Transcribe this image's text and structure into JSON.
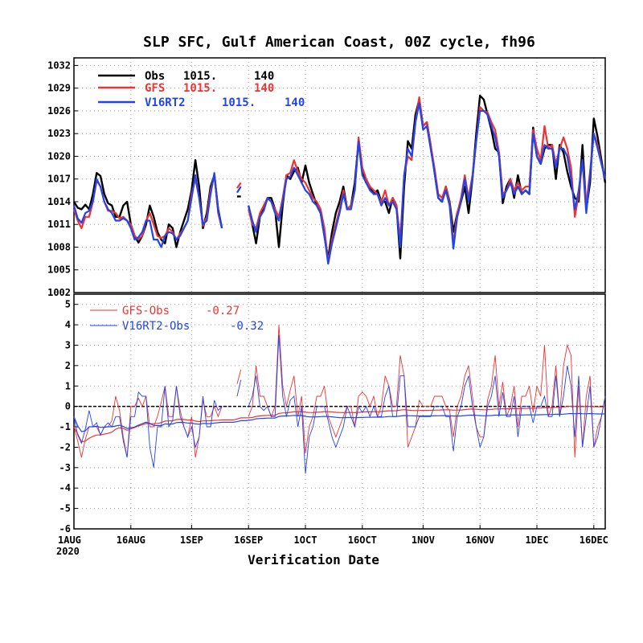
{
  "chart_data": {
    "type": "line",
    "title": "SLP SFC, Gulf American Coast, 00Z cycle, fh96",
    "xlabel": "Verification Date",
    "grid": true,
    "x_ticks": [
      "1AUG",
      "16AUG",
      "1SEP",
      "16SEP",
      "1OCT",
      "16OCT",
      "1NOV",
      "16NOV",
      "1DEC",
      "16DEC"
    ],
    "x_tick_day": [
      0,
      15,
      31,
      46,
      61,
      76,
      92,
      107,
      122,
      137
    ],
    "x_year": "2020",
    "n_days": 141,
    "top_panel": {
      "ylim": [
        1002,
        1033
      ],
      "yticks": [
        1002,
        1005,
        1008,
        1011,
        1014,
        1017,
        1020,
        1023,
        1026,
        1029,
        1032
      ],
      "legend": [
        {
          "name": "Obs",
          "mean": "1015.",
          "count": "140",
          "color": "#000000"
        },
        {
          "name": "GFS",
          "mean": "1015.",
          "count": "140",
          "color": "#ee3333"
        },
        {
          "name": "V16RT2",
          "mean": "1015.",
          "count": "140",
          "color": "#2244ee"
        }
      ],
      "series": [
        {
          "name": "Obs",
          "color": "#000000",
          "values": [
            1014.0,
            1013.2,
            1013.0,
            1013.6,
            1013.0,
            1015.0,
            1017.8,
            1017.4,
            1015.0,
            1013.8,
            1013.5,
            1012.0,
            1012.0,
            1013.5,
            1014.0,
            1011.0,
            1009.5,
            1008.6,
            1009.5,
            1011.0,
            1013.5,
            1012.0,
            1010.0,
            1009.0,
            1008.5,
            1011.0,
            1010.5,
            1008.0,
            1010.0,
            1011.5,
            1013.0,
            1015.5,
            1019.5,
            1016.0,
            1010.5,
            1012.5,
            1016.0,
            1017.5,
            1013.0,
            1010.5,
            null,
            null,
            null,
            1014.7,
            1014.7,
            null,
            1013.5,
            1011.0,
            1008.5,
            1012.0,
            1013.0,
            1014.5,
            1014.5,
            1013.0,
            1008.0,
            1013.5,
            1017.5,
            1017.0,
            1018.0,
            1018.5,
            1016.5,
            1018.8,
            1016.5,
            1015.0,
            1013.5,
            1012.5,
            1009.5,
            1006.5,
            1010.0,
            1012.5,
            1014.0,
            1016.0,
            1013.0,
            1013.5,
            1016.5,
            1022.0,
            1017.8,
            1016.5,
            1016.0,
            1015.0,
            1015.5,
            1014.0,
            1014.0,
            1012.5,
            1014.5,
            1013.5,
            1006.5,
            1016.0,
            1022.0,
            1021.0,
            1025.5,
            1027.5,
            1024.0,
            1024.5,
            1021.5,
            1018.0,
            1014.5,
            1014.0,
            1016.0,
            1014.0,
            1010.0,
            1012.5,
            1014.0,
            1016.0,
            1012.5,
            1017.0,
            1023.0,
            1028.0,
            1027.5,
            1025.5,
            1023.5,
            1021.0,
            1020.5,
            1013.8,
            1016.0,
            1017.0,
            1014.5,
            1017.5,
            1015.0,
            1015.5,
            1015.0,
            1023.8,
            1020.0,
            1019.0,
            1021.0,
            1021.5,
            1021.5,
            1017.0,
            1021.5,
            1020.5,
            1018.0,
            1016.0,
            1014.5,
            1014.0,
            1021.5,
            1013.0,
            1016.5,
            1025.0,
            1022.5,
            1019.5,
            1016.5
          ]
        },
        {
          "name": "GFS",
          "color": "#ee3333",
          "values": [
            1013.0,
            1011.5,
            1010.5,
            1012.0,
            1012.0,
            1014.0,
            1016.8,
            1016.0,
            1014.0,
            1012.8,
            1012.8,
            1012.5,
            1011.8,
            1012.0,
            1011.5,
            1011.0,
            1009.5,
            1009.0,
            1009.5,
            1011.5,
            1012.5,
            1011.0,
            1009.5,
            1009.2,
            1009.5,
            1010.5,
            1010.0,
            1009.0,
            1009.8,
            1010.5,
            1011.5,
            1015.0,
            1017.0,
            1014.5,
            1010.8,
            1012.0,
            1015.5,
            1017.5,
            1012.5,
            1010.5,
            null,
            null,
            null,
            1015.8,
            1016.5,
            null,
            1013.0,
            1011.0,
            1010.5,
            1012.5,
            1013.5,
            1014.5,
            1014.0,
            1013.0,
            1012.0,
            1014.5,
            1017.5,
            1017.8,
            1019.5,
            1018.0,
            1017.0,
            1016.5,
            1015.5,
            1014.5,
            1014.0,
            1013.0,
            1010.5,
            1006.0,
            1009.0,
            1011.0,
            1013.0,
            1015.5,
            1013.0,
            1013.5,
            1015.5,
            1022.5,
            1018.5,
            1017.0,
            1016.0,
            1015.5,
            1015.0,
            1014.0,
            1015.5,
            1013.5,
            1014.5,
            1013.5,
            1009.0,
            1017.5,
            1020.0,
            1019.5,
            1024.5,
            1027.8,
            1024.0,
            1024.5,
            1021.5,
            1018.5,
            1015.0,
            1014.5,
            1016.0,
            1013.8,
            1008.5,
            1012.5,
            1014.5,
            1017.5,
            1014.5,
            1017.5,
            1022.0,
            1026.5,
            1026.0,
            1025.8,
            1024.5,
            1023.5,
            1020.5,
            1015.0,
            1015.5,
            1017.0,
            1015.5,
            1016.5,
            1015.5,
            1016.0,
            1016.0,
            1023.5,
            1021.0,
            1019.5,
            1024.0,
            1021.0,
            1021.5,
            1019.0,
            1021.0,
            1022.5,
            1021.0,
            1018.5,
            1012.0,
            1015.0,
            1019.5,
            1013.5,
            1018.0,
            1023.0,
            1021.5,
            1019.0,
            1017.0
          ]
        },
        {
          "name": "V16RT2",
          "color": "#2244ee",
          "values": [
            1013.5,
            1011.8,
            1011.2,
            1012.5,
            1012.8,
            1014.0,
            1017.0,
            1016.0,
            1014.0,
            1013.0,
            1012.5,
            1011.5,
            1011.5,
            1011.8,
            1011.5,
            1010.5,
            1009.0,
            1009.3,
            1010.0,
            1011.5,
            1011.5,
            1009.0,
            1009.0,
            1008.0,
            1009.5,
            1010.0,
            1009.8,
            1009.0,
            1009.5,
            1010.5,
            1011.5,
            1014.5,
            1017.5,
            1014.5,
            1011.0,
            1011.5,
            1015.0,
            1017.8,
            1012.8,
            1010.5,
            null,
            null,
            null,
            1015.2,
            1016.0,
            null,
            1013.5,
            1011.5,
            1010.0,
            1012.0,
            1012.8,
            1014.5,
            1014.0,
            1012.5,
            1011.5,
            1014.0,
            1017.0,
            1017.3,
            1018.5,
            1017.5,
            1016.5,
            1015.5,
            1015.0,
            1014.0,
            1013.5,
            1012.5,
            1009.5,
            1005.8,
            1008.5,
            1010.5,
            1012.5,
            1015.0,
            1013.0,
            1013.0,
            1015.5,
            1022.0,
            1017.5,
            1016.5,
            1015.5,
            1015.0,
            1015.0,
            1013.5,
            1014.5,
            1013.5,
            1014.0,
            1013.0,
            1008.0,
            1017.5,
            1021.0,
            1020.0,
            1024.5,
            1027.0,
            1023.5,
            1024.0,
            1021.0,
            1018.0,
            1014.5,
            1014.0,
            1015.5,
            1013.5,
            1007.8,
            1012.0,
            1014.0,
            1017.0,
            1014.0,
            1017.0,
            1022.0,
            1026.0,
            1026.0,
            1025.5,
            1024.0,
            1022.5,
            1020.0,
            1014.5,
            1015.5,
            1016.5,
            1015.0,
            1016.0,
            1015.0,
            1015.5,
            1015.0,
            1023.0,
            1020.0,
            1019.0,
            1021.5,
            1021.0,
            1021.0,
            1018.5,
            1021.0,
            1021.0,
            1020.0,
            1017.0,
            1013.0,
            1015.5,
            1019.5,
            1012.5,
            1017.5,
            1023.0,
            1021.0,
            1019.0,
            1017.0
          ]
        }
      ]
    },
    "bottom_panel": {
      "ylim": [
        -6,
        5.5
      ],
      "yticks": [
        -6,
        -5,
        -4,
        -3,
        -2,
        -1,
        0,
        1,
        2,
        3,
        4,
        5
      ],
      "legend": [
        {
          "name": "GFS-Obs",
          "mean": "-0.27",
          "color": "#ee3333"
        },
        {
          "name": "V16RT2-Obs",
          "mean": "-0.32",
          "color": "#2244ee"
        }
      ],
      "zero_line": true
    }
  }
}
